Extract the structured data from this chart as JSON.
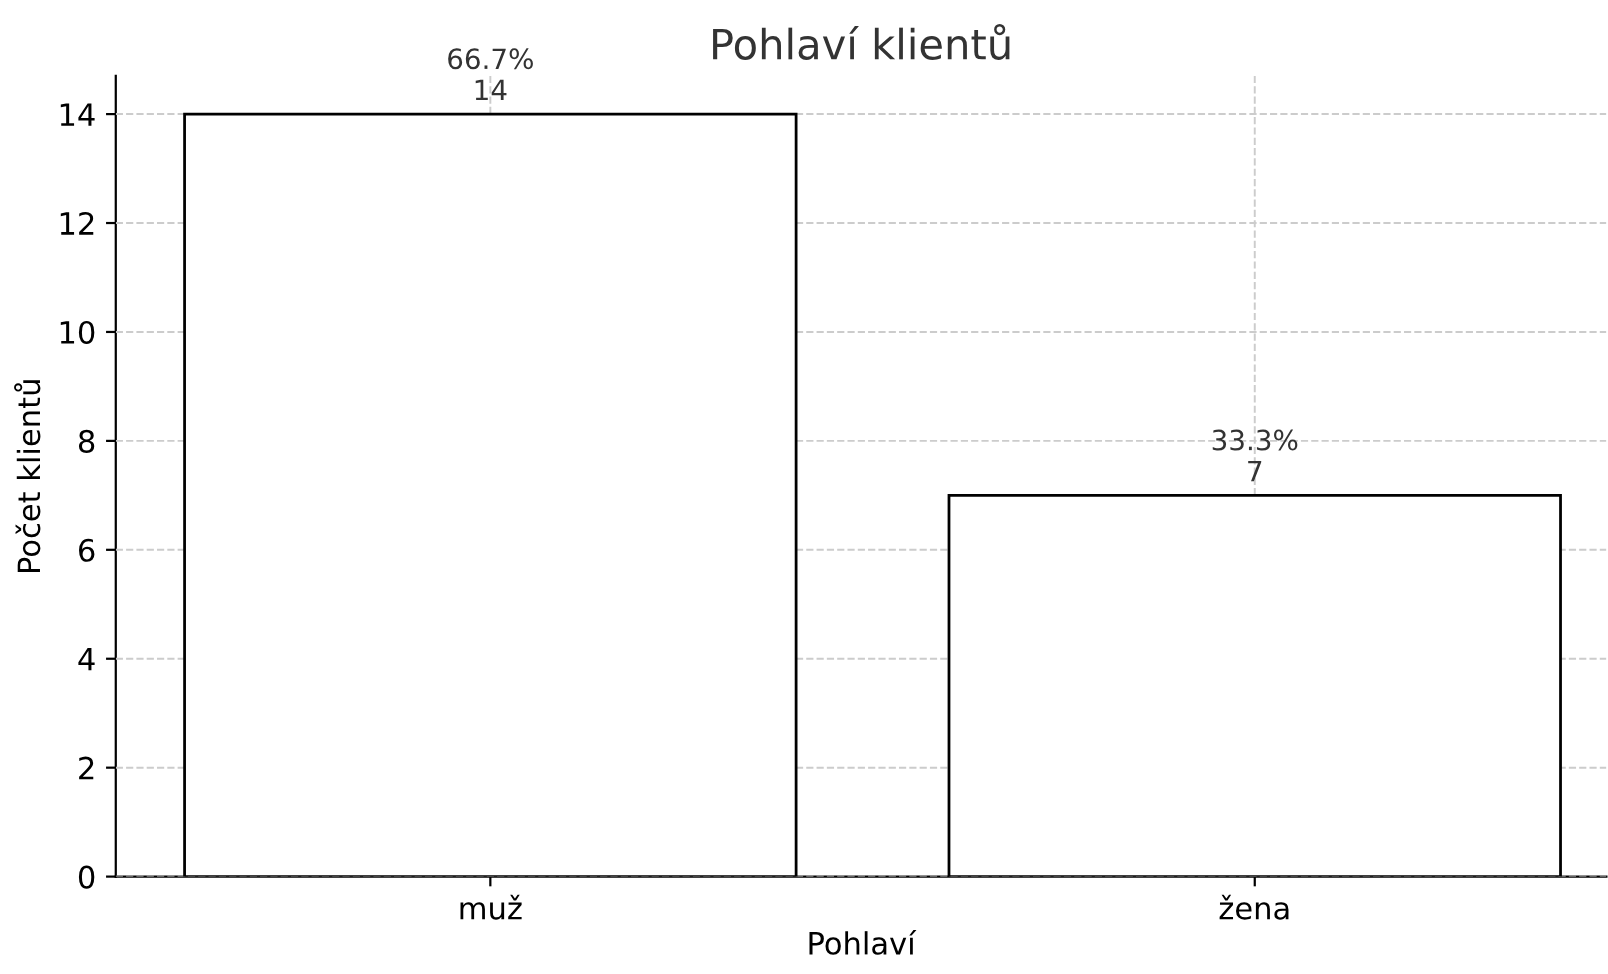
{
  "chart_data": {
    "type": "bar",
    "title": "Pohlaví klientů",
    "xlabel": "Pohlaví",
    "ylabel": "Počet klientů",
    "categories": [
      "muž",
      "žena"
    ],
    "values": [
      14,
      7
    ],
    "value_labels": [
      "66.7%\n14",
      "33.3%\n7"
    ],
    "color": "#ffffff",
    "ylim": [
      0,
      14.7
    ],
    "yticks": [
      0,
      2,
      4,
      6,
      8,
      10,
      12,
      14
    ],
    "grid": true
  }
}
